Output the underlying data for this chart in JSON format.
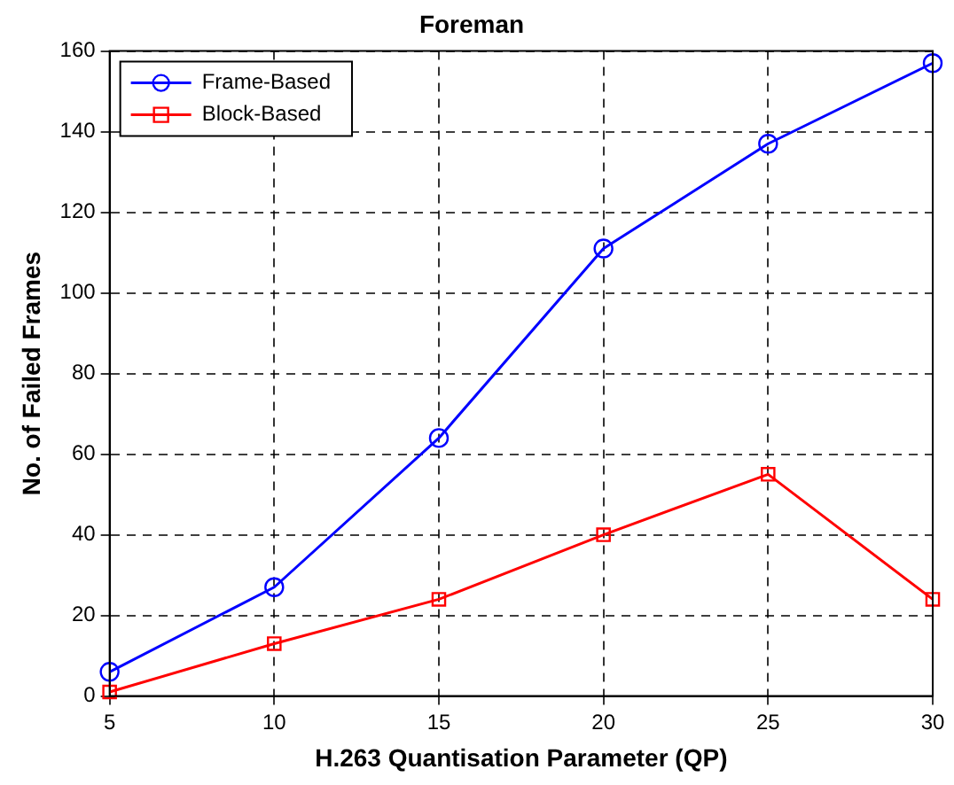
{
  "chart_data": {
    "type": "line",
    "title": "Foreman",
    "xlabel": "H.263 Quantisation Parameter (QP)",
    "ylabel": "No. of Failed Frames",
    "x": [
      5,
      10,
      15,
      20,
      25,
      30
    ],
    "series": [
      {
        "name": "Frame-Based",
        "color": "#0000ff",
        "marker": "circle",
        "values": [
          6,
          27,
          64,
          111,
          137,
          157
        ]
      },
      {
        "name": "Block-Based",
        "color": "#ff0000",
        "marker": "square",
        "values": [
          1,
          13,
          24,
          40,
          55,
          24
        ]
      }
    ],
    "xlim": [
      5,
      30
    ],
    "xticks": [
      5,
      10,
      15,
      20,
      25,
      30
    ],
    "ylim": [
      0,
      160
    ],
    "yticks": [
      0,
      20,
      40,
      60,
      80,
      100,
      120,
      140,
      160
    ],
    "grid": true,
    "legend": "top left",
    "line_style": "solid"
  }
}
